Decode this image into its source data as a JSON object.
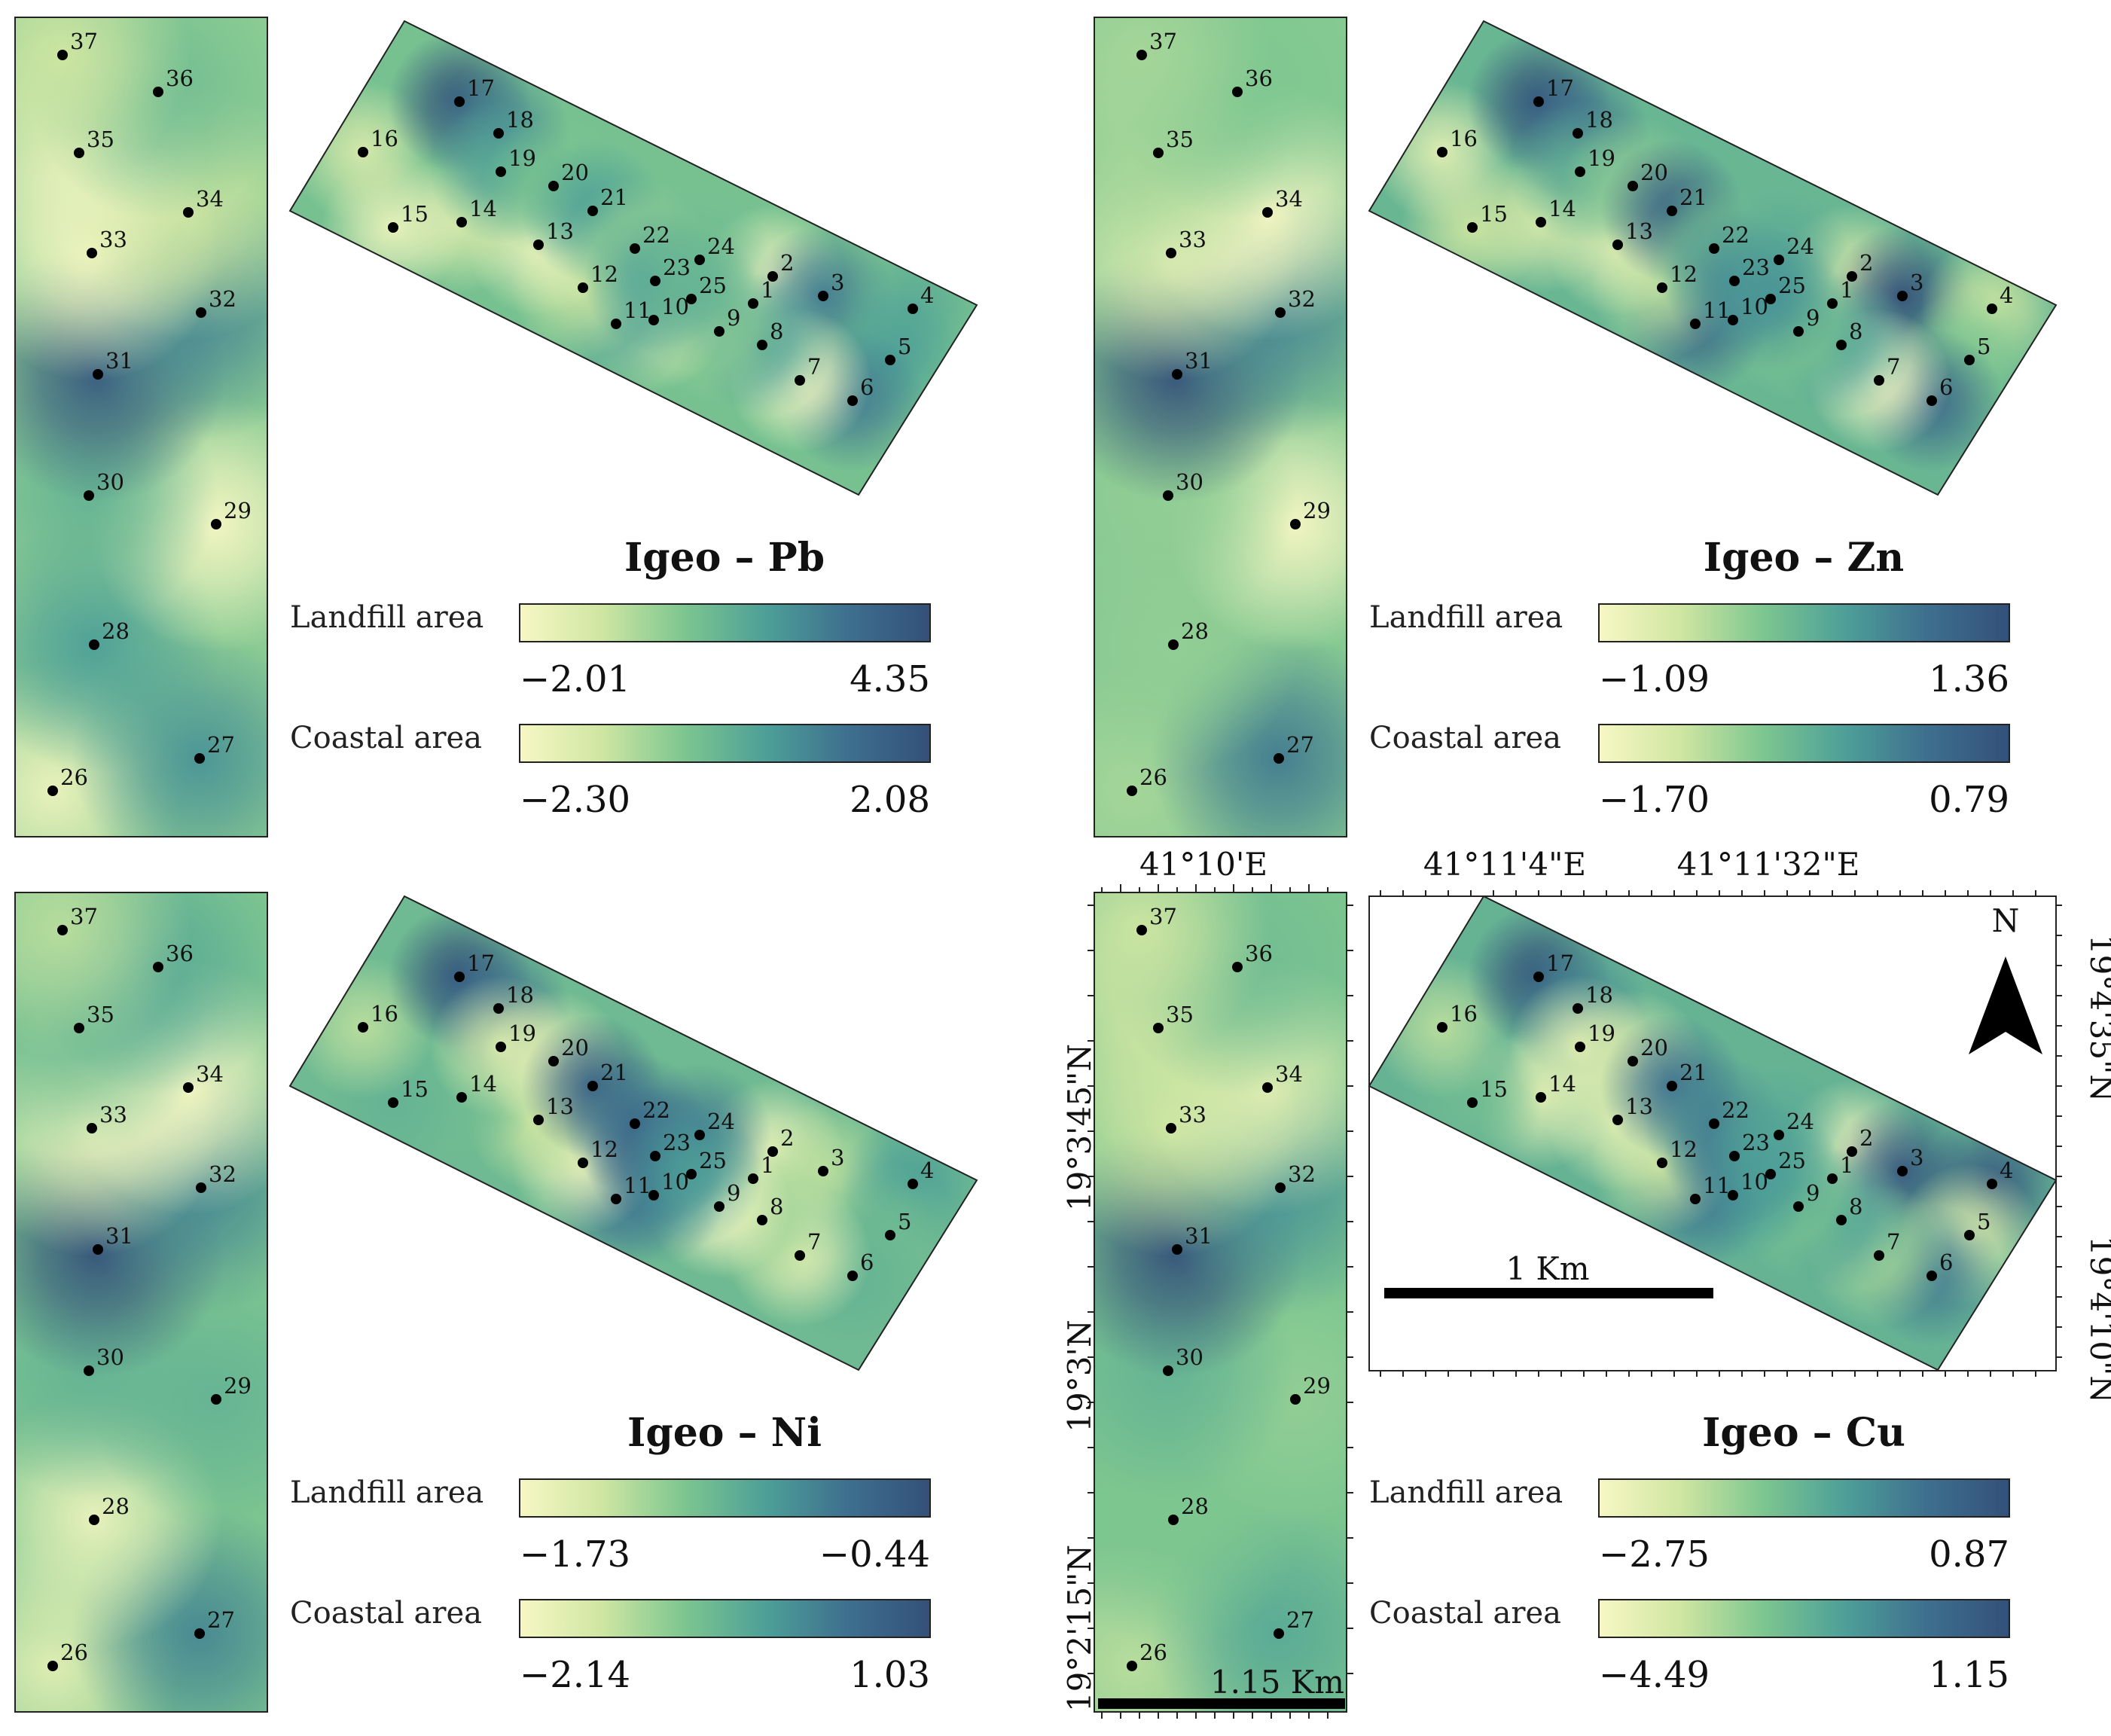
{
  "colors": {
    "ramp": [
      "#f7f7c4",
      "#cfe6a2",
      "#7dc690",
      "#4d9f98",
      "#3e6f8e",
      "#33507a"
    ],
    "frame": "#222222",
    "point": "#000000"
  },
  "sample_points": {
    "landfill": [
      "1",
      "2",
      "3",
      "4",
      "5",
      "6",
      "7",
      "8",
      "9",
      "10",
      "11",
      "12",
      "13",
      "14",
      "15",
      "16",
      "17",
      "18",
      "19",
      "20",
      "21",
      "22",
      "23",
      "24",
      "25"
    ],
    "coastal": [
      "26",
      "27",
      "28",
      "29",
      "30",
      "31",
      "32",
      "33",
      "34",
      "35",
      "36",
      "37"
    ]
  },
  "panels": [
    {
      "id": "pb",
      "title": "Igeo – Pb",
      "landfill": {
        "label": "Landfill area",
        "min": "−2.01",
        "max": "4.35"
      },
      "coastal": {
        "label": "Coastal area",
        "min": "−2.30",
        "max": "2.08"
      },
      "landfill_levels": {
        "1": 0.55,
        "2": 0.05,
        "3": 0.75,
        "4": 0.55,
        "5": 0.6,
        "6": 0.75,
        "7": 0.0,
        "8": 0.6,
        "9": 0.35,
        "10": 0.1,
        "11": 0.55,
        "12": 0.2,
        "13": 0.05,
        "14": 0.15,
        "15": 0.05,
        "16": 0.15,
        "17": 1.0,
        "18": 0.7,
        "19": 0.55,
        "20": 0.4,
        "21": 0.6,
        "22": 0.35,
        "23": 0.6,
        "24": 0.45,
        "25": 0.5
      },
      "coastal_levels": {
        "26": 0.05,
        "27": 0.65,
        "28": 0.6,
        "29": 0.0,
        "30": 0.5,
        "31": 0.95,
        "32": 0.7,
        "33": 0.0,
        "34": 0.2,
        "35": 0.05,
        "36": 0.45,
        "37": 0.2
      }
    },
    {
      "id": "zn",
      "title": "Igeo – Zn",
      "landfill": {
        "label": "Landfill area",
        "min": "−1.09",
        "max": "1.36"
      },
      "coastal": {
        "label": "Coastal area",
        "min": "−1.70",
        "max": "0.79"
      },
      "landfill_levels": {
        "1": 0.5,
        "2": 0.15,
        "3": 1.0,
        "4": 0.2,
        "5": 0.4,
        "6": 0.85,
        "7": 0.0,
        "8": 0.6,
        "9": 0.4,
        "10": 0.45,
        "11": 0.85,
        "12": 0.25,
        "13": 0.1,
        "14": 0.15,
        "15": 0.2,
        "16": 0.1,
        "17": 1.0,
        "18": 0.8,
        "19": 0.5,
        "20": 0.35,
        "21": 0.9,
        "22": 0.45,
        "23": 0.7,
        "24": 0.55,
        "25": 0.65
      },
      "coastal_levels": {
        "26": 0.3,
        "27": 0.75,
        "28": 0.35,
        "29": 0.0,
        "30": 0.35,
        "31": 1.0,
        "32": 0.7,
        "33": 0.1,
        "34": 0.0,
        "35": 0.3,
        "36": 0.4,
        "37": 0.3
      }
    },
    {
      "id": "ni",
      "title": "Igeo – Ni",
      "landfill": {
        "label": "Landfill area",
        "min": "−1.73",
        "max": "−0.44"
      },
      "coastal": {
        "label": "Coastal area",
        "min": "−2.14",
        "max": "1.03"
      },
      "landfill_levels": {
        "1": 0.4,
        "2": 0.05,
        "3": 0.25,
        "4": 0.6,
        "5": 0.45,
        "6": 0.5,
        "7": 0.1,
        "8": 0.3,
        "9": 0.0,
        "10": 0.7,
        "11": 0.75,
        "12": 0.05,
        "13": 0.2,
        "14": 0.45,
        "15": 0.5,
        "16": 0.25,
        "17": 1.0,
        "18": 0.8,
        "19": 0.15,
        "20": 0.1,
        "21": 0.9,
        "22": 0.8,
        "23": 0.85,
        "24": 0.75,
        "25": 0.6
      },
      "coastal_levels": {
        "26": 0.1,
        "27": 0.7,
        "28": 0.05,
        "29": 0.5,
        "30": 0.5,
        "31": 1.0,
        "32": 0.7,
        "33": 0.05,
        "34": 0.0,
        "35": 0.45,
        "36": 0.55,
        "37": 0.25
      }
    },
    {
      "id": "cu",
      "title": "Igeo – Cu",
      "landfill": {
        "label": "Landfill area",
        "min": "−2.75",
        "max": "0.87"
      },
      "coastal": {
        "label": "Coastal area",
        "min": "−4.49",
        "max": "1.15"
      },
      "landfill_levels": {
        "1": 0.45,
        "2": 0.05,
        "3": 0.95,
        "4": 0.95,
        "5": 0.15,
        "6": 0.75,
        "7": 0.3,
        "8": 0.6,
        "9": 0.4,
        "10": 0.6,
        "11": 0.75,
        "12": 0.2,
        "13": 0.1,
        "14": 0.1,
        "15": 0.45,
        "16": 0.25,
        "17": 1.0,
        "18": 0.7,
        "19": 0.1,
        "20": 0.15,
        "21": 0.8,
        "22": 0.7,
        "23": 0.75,
        "24": 0.55,
        "25": 0.6
      },
      "coastal_levels": {
        "26": 0.25,
        "27": 0.55,
        "28": 0.4,
        "29": 0.35,
        "30": 0.5,
        "31": 1.0,
        "32": 0.65,
        "33": 0.2,
        "34": 0.1,
        "35": 0.2,
        "36": 0.45,
        "37": 0.2
      }
    }
  ],
  "map_furniture": {
    "lon_labels": [
      "41°10'E",
      "41°11'4\"E",
      "41°11'32\"E"
    ],
    "lat_labels_coastal": [
      "19°3'45\"N",
      "19°3'N",
      "19°2'15\"N"
    ],
    "lat_labels_landfill": [
      "19°4'35\"N",
      "19°4'10\"N"
    ],
    "north_label": "N",
    "scalebar_landfill": "1 Km",
    "scalebar_coastal": "1.15 Km"
  }
}
